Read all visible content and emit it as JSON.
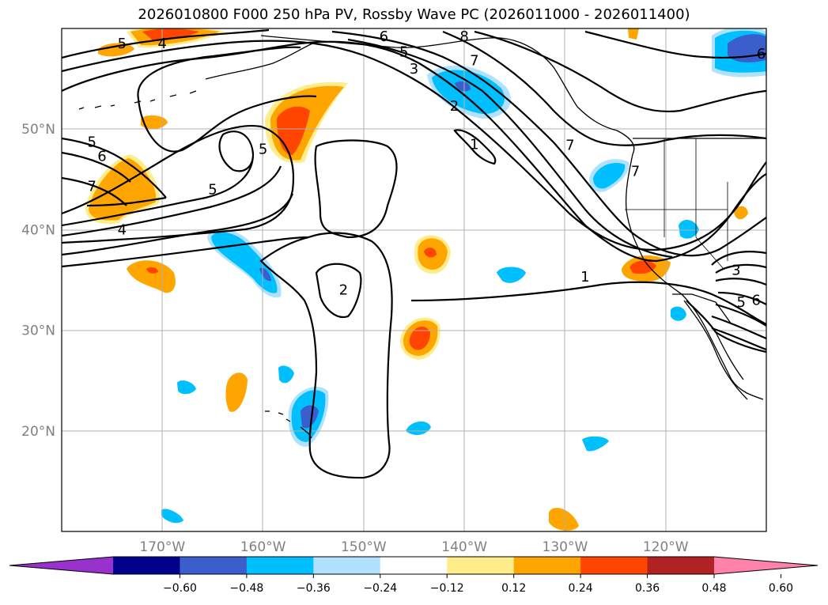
{
  "title": "2026010800 F000 250 hPa PV, Rossby Wave PC (2026011000 - 2026011400)",
  "map": {
    "projection": "PlateCarree",
    "extent": {
      "lon_min": -180,
      "lon_max": -110,
      "lat_min": 10,
      "lat_max": 60
    },
    "gridlines": {
      "lats": [
        {
          "value": 20,
          "label": "20°N"
        },
        {
          "value": 30,
          "label": "30°N"
        },
        {
          "value": 40,
          "label": "40°N"
        },
        {
          "value": 50,
          "label": "50°N"
        }
      ],
      "lons": [
        {
          "value": -170,
          "label": "170°W"
        },
        {
          "value": -160,
          "label": "160°W"
        },
        {
          "value": -150,
          "label": "150°W"
        },
        {
          "value": -140,
          "label": "140°W"
        },
        {
          "value": -130,
          "label": "130°W"
        },
        {
          "value": -120,
          "label": "120°W"
        }
      ]
    },
    "pv_contour_labels": [
      {
        "text": "5",
        "lon": -174,
        "lat": 58.5
      },
      {
        "text": "4",
        "lon": -170,
        "lat": 58.5
      },
      {
        "text": "6",
        "lon": -148,
        "lat": 59.2
      },
      {
        "text": "8",
        "lon": -140,
        "lat": 59.2
      },
      {
        "text": "5",
        "lon": -146,
        "lat": 57.7
      },
      {
        "text": "3",
        "lon": -145,
        "lat": 56.0
      },
      {
        "text": "7",
        "lon": -139,
        "lat": 56.8
      },
      {
        "text": "2",
        "lon": -141,
        "lat": 52.3
      },
      {
        "text": "6",
        "lon": -110.5,
        "lat": 57.5
      },
      {
        "text": "5",
        "lon": -177,
        "lat": 48.7
      },
      {
        "text": "6",
        "lon": -176,
        "lat": 47.3
      },
      {
        "text": "7",
        "lon": -177,
        "lat": 44.3
      },
      {
        "text": "4",
        "lon": -174,
        "lat": 40.0
      },
      {
        "text": "5",
        "lon": -165,
        "lat": 44.0
      },
      {
        "text": "5",
        "lon": -160,
        "lat": 48.0
      },
      {
        "text": "1",
        "lon": -139,
        "lat": 48.5
      },
      {
        "text": "7",
        "lon": -129.5,
        "lat": 48.4
      },
      {
        "text": "7",
        "lon": -123,
        "lat": 45.8
      },
      {
        "text": "2",
        "lon": -152,
        "lat": 34.0
      },
      {
        "text": "1",
        "lon": -128,
        "lat": 35.3
      },
      {
        "text": "3",
        "lon": -113,
        "lat": 36.0
      },
      {
        "text": "5",
        "lon": -112.5,
        "lat": 32.8
      },
      {
        "text": "6",
        "lon": -111,
        "lat": 33.0
      }
    ]
  },
  "colorbar": {
    "ticks": [
      "−0.60",
      "−0.48",
      "−0.36",
      "−0.24",
      "−0.12",
      "0.12",
      "0.24",
      "0.36",
      "0.48",
      "0.60"
    ],
    "colors": [
      "#9932cc",
      "#00008b",
      "#3a5fcd",
      "#00bfff",
      "#b0e2ff",
      "#ffffff",
      "#ffec8b",
      "#ffa500",
      "#ff4500",
      "#b22222",
      "#ff82ab"
    ]
  }
}
